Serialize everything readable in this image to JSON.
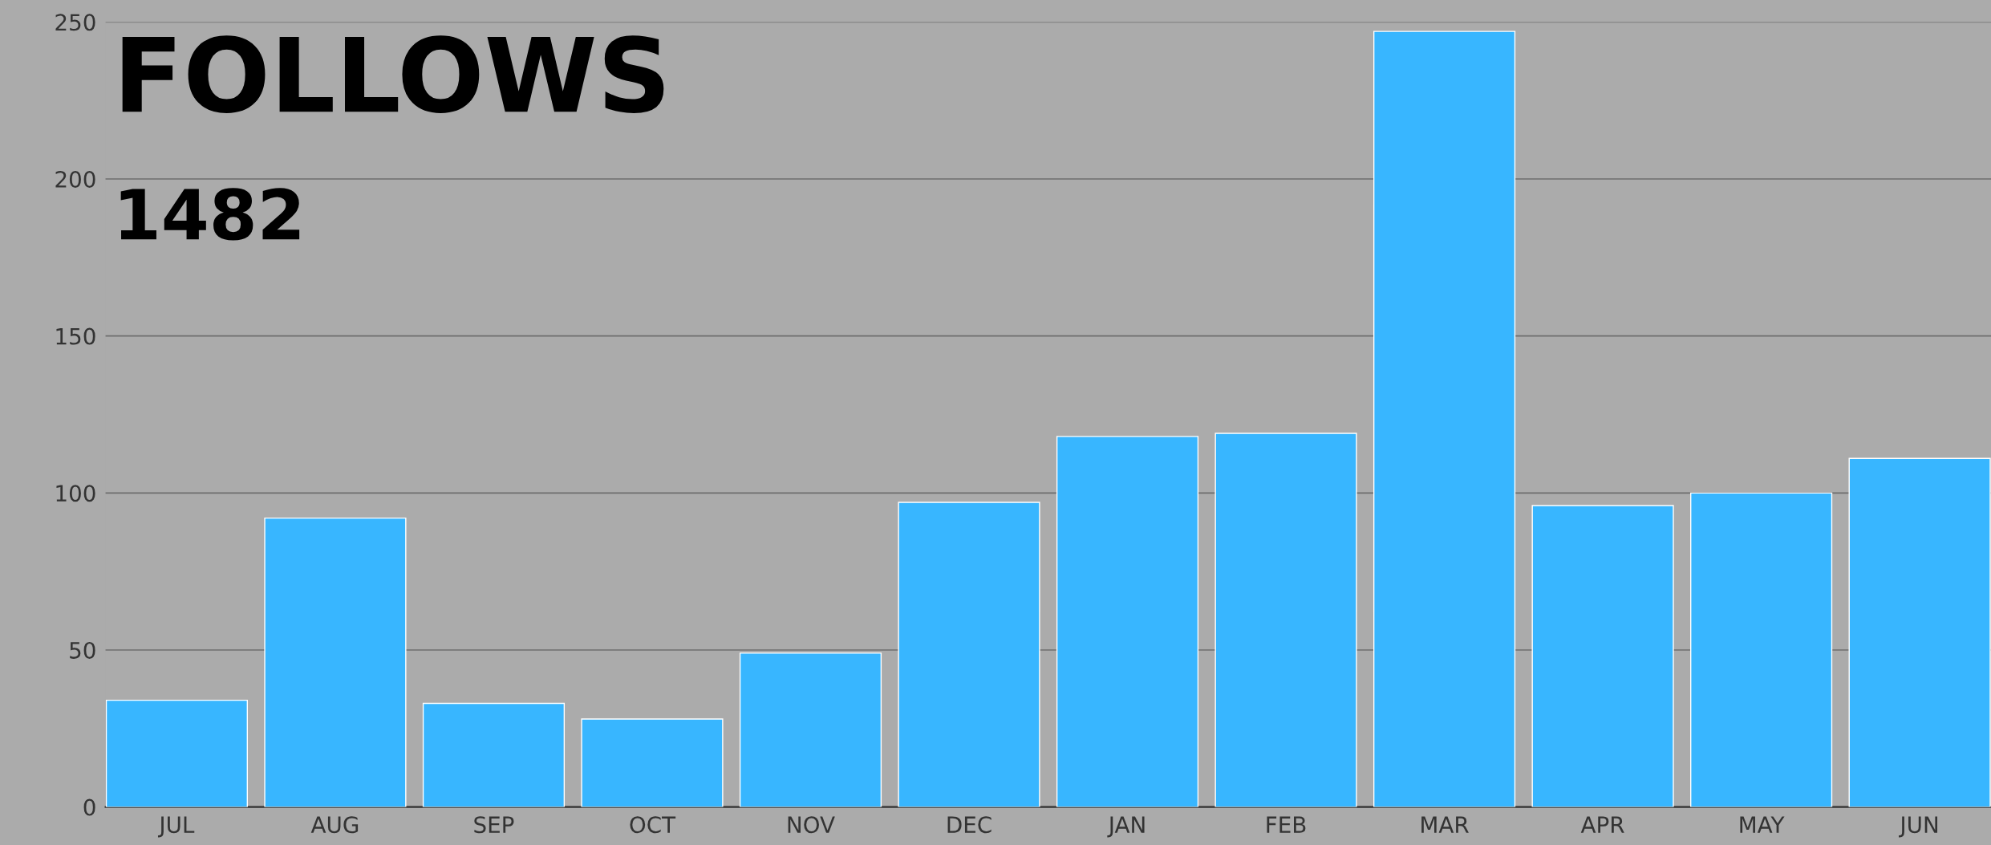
{
  "chart_data": {
    "type": "bar",
    "title": "FOLLOWS",
    "subtitle": "1482",
    "categories": [
      "JUL",
      "AUG",
      "SEP",
      "OCT",
      "NOV",
      "DEC",
      "JAN",
      "FEB",
      "MAR",
      "APR",
      "MAY",
      "JUN"
    ],
    "values": [
      34,
      92,
      33,
      28,
      49,
      97,
      118,
      119,
      247,
      96,
      100,
      111
    ],
    "color": "#38b6ff",
    "ylim": [
      0,
      250
    ],
    "yticks": [
      0,
      50,
      100,
      150,
      200,
      250
    ],
    "grid": "y",
    "legend": false
  }
}
